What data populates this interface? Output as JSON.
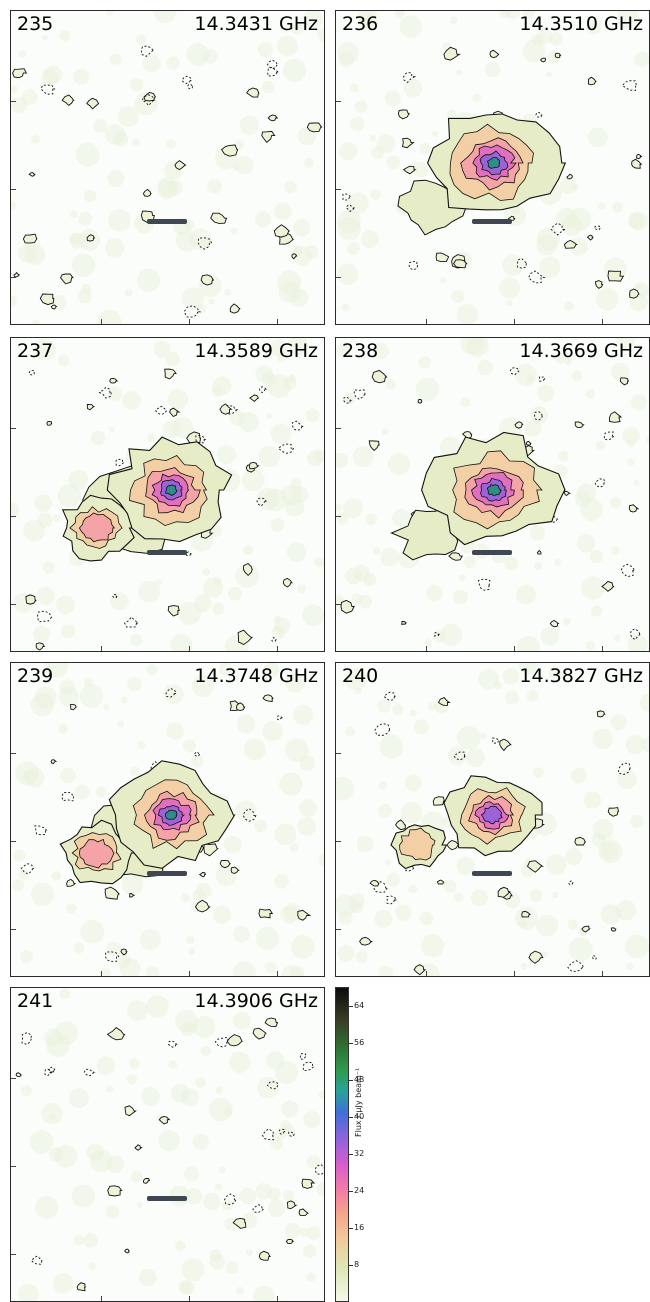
{
  "panels": [
    {
      "channel": "235",
      "frequency": "14.3431 GHz",
      "emission": "none"
    },
    {
      "channel": "236",
      "frequency": "14.3510 GHz",
      "emission": "strong"
    },
    {
      "channel": "237",
      "frequency": "14.3589 GHz",
      "emission": "strong-double"
    },
    {
      "channel": "238",
      "frequency": "14.3669 GHz",
      "emission": "strong"
    },
    {
      "channel": "239",
      "frequency": "14.3748 GHz",
      "emission": "strong-double"
    },
    {
      "channel": "240",
      "frequency": "14.3827 GHz",
      "emission": "moderate"
    },
    {
      "channel": "241",
      "frequency": "14.3906 GHz",
      "emission": "none"
    }
  ],
  "colorbar": {
    "label": "Flux / μJy beam⁻¹",
    "ticks": [
      "8",
      "16",
      "24",
      "32",
      "40",
      "48",
      "56",
      "64"
    ]
  }
}
